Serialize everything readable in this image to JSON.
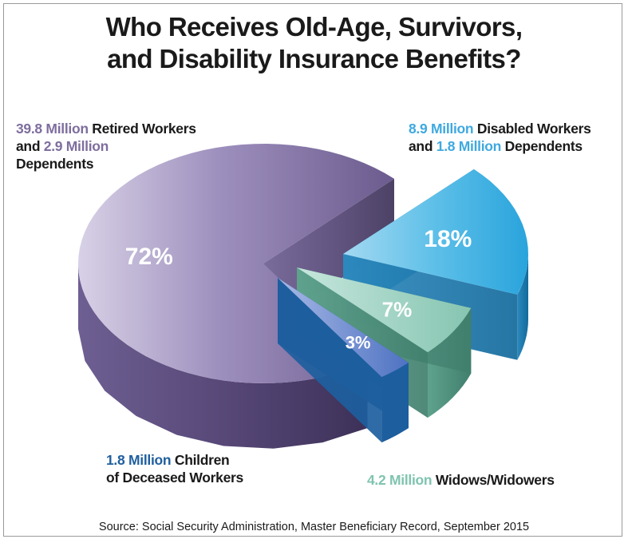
{
  "title_line1": "Who Receives Old-Age, Survivors,",
  "title_line2": "and Disability Insurance Benefits?",
  "source": "Source: Social Security Administration, Master Beneficiary Record, September 2015",
  "labels": {
    "retired": {
      "line1_hl": "39.8 Million",
      "line1_rest": " Retired Workers",
      "line2_pre": "and ",
      "line2_hl": "2.9 Million",
      "line3": "Dependents"
    },
    "disabled": {
      "line1_hl": "8.9 Million",
      "line1_rest": " Disabled Workers",
      "line2_pre": "and ",
      "line2_hl": "1.8 Million",
      "line2_rest": " Dependents"
    },
    "children": {
      "line1_hl": "1.8 Million",
      "line1_rest": " Children",
      "line2": "of Deceased Workers"
    },
    "widows": {
      "line1_hl": "4.2 Million",
      "line1_rest": " Widows/Widowers"
    }
  },
  "chart_data": {
    "type": "pie",
    "title": "Who Receives Old-Age, Survivors, and Disability Insurance Benefits?",
    "slices": [
      {
        "label": "Retired Workers and Dependents",
        "value": 72,
        "display": "72%",
        "color": "#7e6e9e"
      },
      {
        "label": "Disabled Workers and Dependents",
        "value": 18,
        "display": "18%",
        "color": "#4fb6e3"
      },
      {
        "label": "Widows/Widowers",
        "value": 7,
        "display": "7%",
        "color": "#8fc9b8"
      },
      {
        "label": "Children of Deceased Workers",
        "value": 3,
        "display": "3%",
        "color": "#5b7fc6"
      }
    ],
    "exploded": true,
    "style": "3d"
  },
  "colors": {
    "retired_text": "#7e6e9e",
    "disabled_text": "#3fa9df",
    "children_text": "#1f5f9e",
    "widows_text": "#7fc4af"
  }
}
